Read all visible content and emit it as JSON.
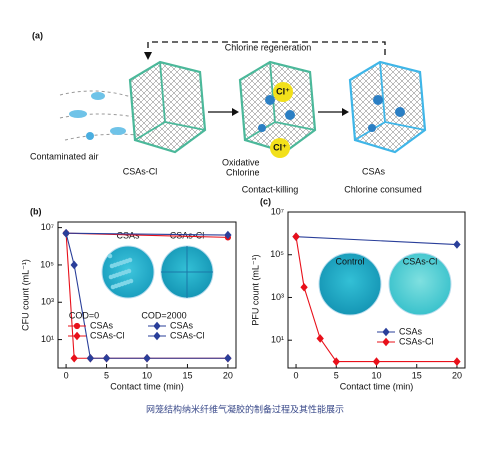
{
  "diagram": {
    "panel": "(a)",
    "regeneration": "Chlorine regeneration",
    "air": "Contaminated air",
    "stages": [
      {
        "label": "CSAs-Cl"
      },
      {
        "label": "Contact-killing",
        "callout": [
          "Oxidative",
          "Chlorine"
        ],
        "ions": [
          "Cl⁺",
          "Cl⁺"
        ]
      },
      {
        "label": "Chlorine consumed",
        "callout": [
          "CSAs"
        ]
      }
    ]
  },
  "chart_data": [
    {
      "type": "line",
      "panel": "(b)",
      "xlabel": "Contact time (min)",
      "ylabel": "CFU count (mL⁻¹)",
      "log_y": true,
      "xlim": [
        -1,
        21
      ],
      "ylim": [
        0.3,
        20000000
      ],
      "xticks": [
        0,
        5,
        10,
        15,
        20
      ],
      "yticks": [
        {
          "value": 10,
          "label": "10¹"
        },
        {
          "value": 1000,
          "label": "10³"
        },
        {
          "value": 100000,
          "label": "10⁵"
        },
        {
          "value": 10000000,
          "label": "10⁷"
        }
      ],
      "inset_labels": [
        "CSAs",
        "CSAs-Cl"
      ],
      "series": [
        {
          "name": "CSAs",
          "group": "COD=0",
          "color": "#e8101a",
          "marker": "circle",
          "x": [
            0,
            20
          ],
          "values": [
            5000000,
            3000000
          ]
        },
        {
          "name": "CSAs-Cl",
          "group": "COD=0",
          "color": "#e8101a",
          "marker": "diamond",
          "x": [
            0,
            1,
            3,
            5,
            10,
            20
          ],
          "values": [
            5000000,
            1,
            1,
            1,
            1,
            1
          ]
        },
        {
          "name": "CSAs",
          "group": "COD=2000",
          "color": "#2a3f9a",
          "marker": "diamond",
          "x": [
            0,
            20
          ],
          "values": [
            5000000,
            4000000
          ]
        },
        {
          "name": "CSAs-Cl",
          "group": "COD=2000",
          "color": "#2a3f9a",
          "marker": "diamond",
          "x": [
            0,
            1,
            3,
            5,
            10,
            20
          ],
          "values": [
            5000000,
            100000,
            1,
            1,
            1,
            1
          ]
        }
      ]
    },
    {
      "type": "line",
      "panel": "(c)",
      "xlabel": "Contact time (min)",
      "ylabel": "PFU count (mL⁻¹)",
      "log_y": true,
      "xlim": [
        -1,
        21
      ],
      "ylim": [
        0.5,
        10000000
      ],
      "xticks": [
        0,
        5,
        10,
        15,
        20
      ],
      "yticks": [
        {
          "value": 10,
          "label": "10¹"
        },
        {
          "value": 1000,
          "label": "10³"
        },
        {
          "value": 100000,
          "label": "10⁵"
        },
        {
          "value": 10000000,
          "label": "10⁷"
        }
      ],
      "inset_labels": [
        "Control",
        "CSAs-Cl"
      ],
      "series": [
        {
          "name": "CSAs",
          "color": "#2a3f9a",
          "marker": "diamond",
          "x": [
            0,
            20
          ],
          "values": [
            700000,
            300000
          ]
        },
        {
          "name": "CSAs-Cl",
          "color": "#e8101a",
          "marker": "diamond",
          "x": [
            0,
            1,
            3,
            5,
            10,
            20
          ],
          "values": [
            700000,
            3000,
            12,
            1,
            1,
            1
          ]
        }
      ]
    }
  ],
  "caption": "网笼结构纳米纤维气凝胶的制备过程及其性能展示"
}
